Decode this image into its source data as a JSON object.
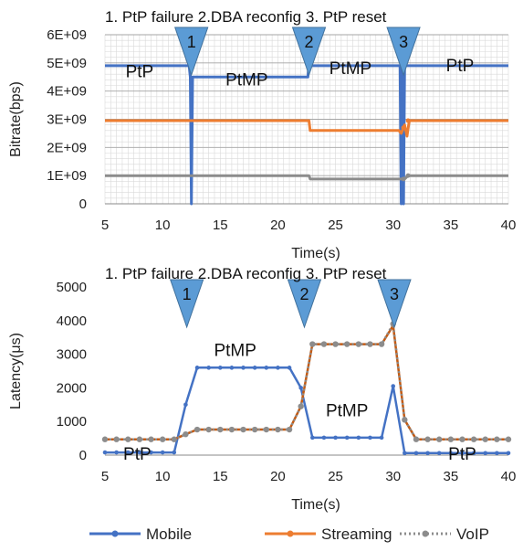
{
  "chart_data": [
    {
      "type": "line",
      "xlabel": "Time(s)",
      "ylabel": "Bitrate(bps)",
      "xlim": [
        5,
        40
      ],
      "ylim": [
        0,
        6000000000
      ],
      "x_ticks": [
        "5",
        "10",
        "15",
        "20",
        "25",
        "30",
        "35",
        "40"
      ],
      "y_ticks": [
        "0",
        "1E+09",
        "2E+09",
        "3E+09",
        "4E+09",
        "5E+09",
        "6E+09"
      ],
      "grid": true,
      "phase_title": "1. PtP failure 2.DBA reconfig   3. PtP reset",
      "markers": [
        {
          "label": "1",
          "x": 12.5
        },
        {
          "label": "2",
          "x": 22.7
        },
        {
          "label": "3",
          "x": 30.9
        }
      ],
      "annotations": [
        {
          "text": "PtP",
          "x": 8.0,
          "y": 4500000000
        },
        {
          "text": "PtMP",
          "x": 17.3,
          "y": 4200000000
        },
        {
          "text": "PtMP",
          "x": 26.3,
          "y": 4600000000
        },
        {
          "text": "PtP",
          "x": 35.8,
          "y": 4700000000
        }
      ],
      "series": [
        {
          "name": "Mobile",
          "color": "#4472C4",
          "x": [
            5,
            12.3,
            12.4,
            12.5,
            12.6,
            12.7,
            13,
            15,
            18,
            20,
            22.6,
            22.7,
            22.8,
            25,
            28,
            30.6,
            30.7,
            30.8,
            30.9,
            31.0,
            31.1,
            31.2,
            31.4,
            33,
            36,
            40
          ],
          "y": [
            4900000000,
            4900000000,
            4500000000,
            0,
            4500000000,
            4500000000,
            4500000000,
            4500000000,
            4500000000,
            4500000000,
            4500000000,
            4900000000,
            4900000000,
            4900000000,
            4900000000,
            4900000000,
            0,
            4900000000,
            0,
            4900000000,
            4900000000,
            4900000000,
            4900000000,
            4900000000,
            4900000000,
            4900000000
          ]
        },
        {
          "name": "Streaming",
          "color": "#ED7D31",
          "x": [
            5,
            10,
            15,
            20,
            22.7,
            22.8,
            25,
            28,
            30.5,
            30.7,
            30.9,
            31.0,
            31.2,
            31.4,
            35,
            40
          ],
          "y": [
            2950000000,
            2950000000,
            2950000000,
            2950000000,
            2950000000,
            2600000000,
            2600000000,
            2600000000,
            2600000000,
            2500000000,
            2700000000,
            2800000000,
            2400000000,
            2950000000,
            2950000000,
            2950000000
          ]
        },
        {
          "name": "VoIP",
          "color": "#8C8C8C",
          "x": [
            5,
            10,
            15,
            20,
            22.7,
            22.8,
            25,
            30.5,
            31.0,
            31.3,
            31.5,
            35,
            40
          ],
          "y": [
            1000000000,
            1000000000,
            1000000000,
            1000000000,
            1000000000,
            880000000,
            880000000,
            880000000,
            880000000,
            1000000000,
            1000000000,
            1000000000,
            1000000000
          ]
        }
      ]
    },
    {
      "type": "line",
      "xlabel": "Time(s)",
      "ylabel": "Latency(μs)",
      "xlim": [
        5,
        40
      ],
      "ylim": [
        0,
        5000
      ],
      "x_ticks": [
        "5",
        "10",
        "15",
        "20",
        "25",
        "30",
        "35",
        "40"
      ],
      "y_ticks": [
        "0",
        "1000",
        "2000",
        "3000",
        "4000",
        "5000"
      ],
      "grid": false,
      "phase_title": "1. PtP failure 2.DBA reconfig   3. PtP reset",
      "markers": [
        {
          "label": "1",
          "x": 12.1
        },
        {
          "label": "2",
          "x": 22.3
        },
        {
          "label": "3",
          "x": 30.1
        }
      ],
      "annotations": [
        {
          "text": "PtP",
          "x": 7.8,
          "y": -130
        },
        {
          "text": "PtMP",
          "x": 16.3,
          "y": 2950
        },
        {
          "text": "PtMP",
          "x": 26.0,
          "y": 1150
        },
        {
          "text": "PtP",
          "x": 36.0,
          "y": -130
        }
      ],
      "series": [
        {
          "name": "Mobile",
          "color": "#4472C4",
          "x": [
            5,
            6,
            7,
            8,
            9,
            10,
            11,
            12,
            13,
            14,
            15,
            16,
            17,
            18,
            19,
            20,
            21,
            22,
            23,
            24,
            25,
            26,
            27,
            28,
            29,
            30,
            31,
            32,
            33,
            34,
            35,
            36,
            37,
            38,
            39,
            40
          ],
          "y": [
            80,
            80,
            80,
            80,
            80,
            80,
            80,
            1500,
            2600,
            2600,
            2600,
            2600,
            2600,
            2600,
            2600,
            2600,
            2600,
            2000,
            520,
            520,
            520,
            520,
            520,
            520,
            520,
            2050,
            60,
            60,
            60,
            60,
            60,
            60,
            60,
            60,
            60,
            60
          ]
        },
        {
          "name": "Streaming",
          "color": "#C55A11",
          "x": [
            5,
            6,
            7,
            8,
            9,
            10,
            11,
            12,
            13,
            14,
            15,
            16,
            17,
            18,
            19,
            20,
            21,
            22,
            23,
            24,
            25,
            26,
            27,
            28,
            29,
            30,
            31,
            32,
            33,
            34,
            35,
            36,
            37,
            38,
            39,
            40
          ],
          "y": [
            470,
            470,
            470,
            470,
            470,
            470,
            470,
            620,
            760,
            760,
            760,
            760,
            760,
            760,
            760,
            760,
            760,
            1450,
            3300,
            3300,
            3300,
            3300,
            3300,
            3300,
            3300,
            3850,
            1050,
            470,
            470,
            470,
            470,
            470,
            470,
            470,
            470,
            470
          ]
        },
        {
          "name": "VoIP",
          "color": "#8C8C8C",
          "x": [
            5,
            6,
            7,
            8,
            9,
            10,
            11,
            12,
            13,
            14,
            15,
            16,
            17,
            18,
            19,
            20,
            21,
            22,
            23,
            24,
            25,
            26,
            27,
            28,
            29,
            30,
            31,
            32,
            33,
            34,
            35,
            36,
            37,
            38,
            39,
            40
          ],
          "y": [
            470,
            470,
            470,
            470,
            470,
            470,
            470,
            620,
            760,
            760,
            760,
            760,
            760,
            760,
            760,
            760,
            760,
            1450,
            3300,
            3300,
            3300,
            3300,
            3300,
            3300,
            3300,
            3900,
            1050,
            470,
            470,
            470,
            470,
            470,
            470,
            470,
            470,
            470
          ]
        }
      ]
    }
  ],
  "legend": {
    "placement": "bottom",
    "items": [
      {
        "label": "Mobile",
        "color": "#4472C4",
        "style": "solid"
      },
      {
        "label": "Streaming",
        "color": "#ED7D31",
        "style": "solid"
      },
      {
        "label": "VoIP",
        "color": "#8C8C8C",
        "style": "dotted"
      }
    ]
  }
}
